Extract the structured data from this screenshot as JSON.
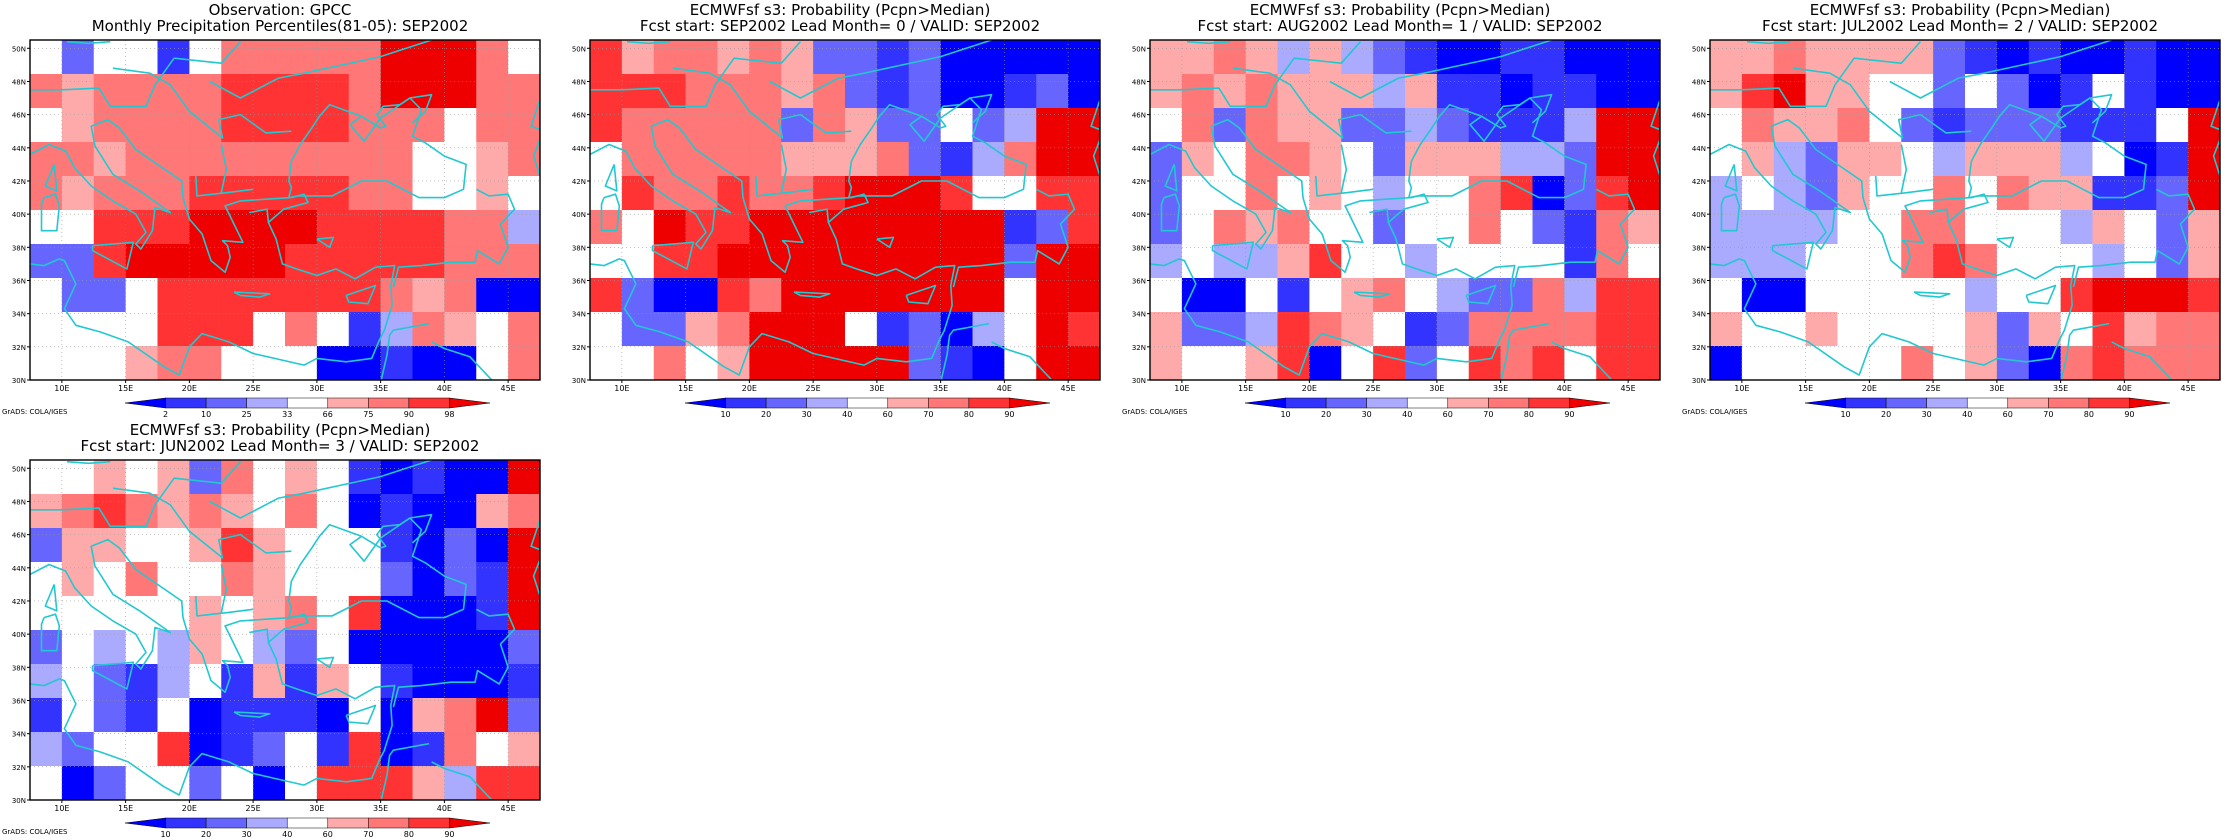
{
  "grid": {
    "lon_from": 7.5,
    "lon_to": 47.5,
    "lat_from": 30,
    "lat_to": 50.5,
    "cols": 16,
    "rows": 10
  },
  "x_ticks": [
    "10E",
    "15E",
    "20E",
    "25E",
    "30E",
    "35E",
    "40E",
    "45E"
  ],
  "y_ticks": [
    "50N",
    "48N",
    "46N",
    "44N",
    "42N",
    "40N",
    "38N",
    "36N",
    "34N",
    "32N",
    "30N"
  ],
  "coast_color": "#22c8d0",
  "colors": {
    "w": "#ffffff",
    "b3": "#0000ff",
    "b2": "#3333ff",
    "b1": "#6666ff",
    "b0": "#aaaaff",
    "r0": "#ffaaaa",
    "r1": "#ff7777",
    "r2": "#ff3333",
    "r3": "#ee0000"
  },
  "scale_obs": {
    "labels": [
      "2",
      "10",
      "25",
      "33",
      "66",
      "75",
      "90",
      "98"
    ],
    "colors": [
      "b3",
      "b2",
      "b1",
      "b0",
      "w",
      "r0",
      "r1",
      "r2",
      "r3"
    ]
  },
  "scale_prob": {
    "labels": [
      "10",
      "20",
      "30",
      "40",
      "60",
      "70",
      "80",
      "90"
    ],
    "colors": [
      "b3",
      "b2",
      "b1",
      "b0",
      "w",
      "r0",
      "r1",
      "r2",
      "r3"
    ]
  },
  "panels": [
    {
      "title1": "Observation: GPCC",
      "title2": "Monthly Precipitation Percentiles(81-05): SEP2002",
      "credit": "GrADS: COLA/IGES",
      "scale": "obs",
      "cells": [
        "w b1 w w b2 w r1 r1 r1 r1 r1 r3 r3 r3 r1 w",
        "r1 r0 r1 r1 r1 r1 r2 r2 r2 r2 r1 r3 r3 r3 r1 r1",
        "w r0 r1 r1 r1 r1 r2 r2 r2 r2 r1 r1 r1 w r1 r1",
        "r1 r1 r0 r1 r1 r1 r1 r1 r1 r1 r1 r1 w w r0 r1",
        "r1 r0 r1 r1 r1 r2 r2 r2 r2 r2 r1 r1 w w r0 w",
        "w w r2 r2 r2 r3 r3 r3 r3 r2 r2 r2 r2 r1 r1 b0",
        "b1 b1 r2 r3 r3 r3 r3 r3 r2 r2 r2 r2 r2 r1 r1 r1",
        "w b1 b1 w r2 r2 r2 r2 r2 r2 r2 r1 r0 r1 b3 b3",
        "w w w w r2 r2 r2 w r1 w b2 b0 r1 r0 w r1",
        "w w w r0 r1 r1 w w w b3 b3 b2 b3 b3 w r1"
      ]
    },
    {
      "title1": "ECMWFsf s3: Probability (Pcpn>Median)",
      "title2": "Fcst start: SEP2002  Lead Month= 0 / VALID: SEP2002",
      "credit": "",
      "scale": "prob",
      "cells": [
        "r2 r0 r1 r1 r0 r1 r0 b1 b1 b2 b1 b3 b3 b3 b3 b3",
        "r2 r2 r2 r1 r1 r1 r0 r1 b1 b2 b1 b3 b3 b2 b1 b3",
        "r2 r1 r1 r1 r1 r1 b1 r1 r0 b1 b1 w b1 b0 r3 r3",
        "w r1 r1 r1 r1 r1 r0 r0 r0 r1 b1 b2 b0 r1 r3 r3",
        "w r2 r1 r1 r2 r1 r1 r2 r3 r3 r3 r2 w w r2 r2",
        "r1 w r3 r2 r2 r3 r3 r3 r3 r3 r3 r3 r3 b2 b1 r2",
        "w w r2 r2 r3 r3 r3 r3 r3 r3 r3 r3 r3 b1 r3 r3",
        "r2 b1 b3 b3 r2 r1 r3 r3 r3 r3 r3 r3 r3 w r3 r3",
        "w b1 b1 r0 r1 r3 r3 r3 w b2 b1 b3 b0 w r3 r2",
        "w w r1 w r0 r3 r3 r3 r3 r3 b1 b2 b3 w r3 r3"
      ]
    },
    {
      "title1": "ECMWFsf s3: Probability (Pcpn>Median)",
      "title2": "Fcst start: AUG2002  Lead Month= 1 / VALID: SEP2002",
      "credit": "GrADS: COLA/IGES",
      "scale": "prob",
      "cells": [
        "r0 r0 r1 r0 b0 r0 b0 b1 b2 b3 b3 b2 b2 b3 b3 b3",
        "r0 r1 r0 r1 r0 r0 r0 b0 r0 b2 b2 b3 b2 b2 b3 b3",
        "w r1 b1 r1 r0 r0 b1 b1 b0 b1 b2 b2 b2 b0 r3 r3",
        "b1 r0 w r1 r1 r0 w b1 r0 r0 r0 b0 b0 b1 r3 r3",
        "b1 w w r1 w r0 w b0 w w r1 r2 b3 b1 r2 r3",
        "b1 w r1 r0 r1 w w b1 w w r1 w b1 b2 r1 r0",
        "b0 w b0 b0 r0 r2 w w b0 w w w w b2 r1 w",
        "w b3 b3 w b2 w r0 r1 w b0 b1 b1 r1 b0 r2 r2",
        "r0 b1 b1 b0 r2 r1 r0 w b2 b1 r1 r1 r1 r1 r2 r2",
        "r0 w w r0 r2 b3 w r2 b1 w r2 r1 r2 w r2 r2"
      ]
    },
    {
      "title1": "ECMWFsf s3: Probability (Pcpn>Median)",
      "title2": "Fcst start: JUL2002  Lead Month= 2 / VALID: SEP2002",
      "credit": "GrADS: COLA/IGES",
      "scale": "prob",
      "cells": [
        "r0 r0 r1 r0 r0 r0 r0 b1 b2 b3 b2 b3 b3 b2 b3 b3",
        "r0 r2 r3 r0 r0 w w b1 w b1 b3 b2 w b2 b3 b3",
        "w r1 r0 r0 r1 w b1 b2 b1 b1 b1 b2 b2 b2 w r3",
        "w r0 b0 b1 r0 r0 w b0 r0 r0 r0 b0 w b3 b2 r3",
        "b0 w b0 b1 r0 w w r1 w r1 r0 r0 b2 b2 b1 r3",
        "b0 b0 b0 b0 w w r1 r1 w w w b0 r0 w b1 r0",
        "b0 b0 b0 w w w r1 r2 r1 w w w b0 w b1 r0",
        "w b3 b3 w w w w w b0 w w r2 r3 r3 r3 r2",
        "r0 w w r0 w w w w r0 b1 r0 w r2 r0 r1 r1",
        "b3 w w w w w r1 w r0 b1 b3 r1 r2 r1 r1 r1"
      ]
    },
    {
      "title1": "ECMWFsf s3: Probability (Pcpn>Median)",
      "title2": "Fcst start: JUN2002  Lead Month= 3 / VALID: SEP2002",
      "credit": "GrADS: COLA/IGES",
      "scale": "prob",
      "cells": [
        "w w r0 w r0 b1 r1 w r0 w b2 b3 b2 b3 b3 r3",
        "r0 r1 r2 r1 r0 r1 r0 w r1 w b3 b2 b3 b3 r0 r1",
        "b1 r0 r0 w w r0 r2 r0 w w w b2 b3 b1 b3 r3",
        "w r0 w r1 w w r1 r0 w w w b1 b3 b1 b2 r3",
        "w w w w w r0 w r0 r1 w r2 b3 b3 b3 b2 r3",
        "b1 w b0 w b0 r0 w b0 b1 w b3 b3 b3 b3 b3 b1",
        "b0 w b1 b2 b0 w b2 r0 b2 r0 w b2 b3 b3 b3 b2",
        "b2 w b1 b2 w b3 b2 b2 b2 b3 w b3 r0 r1 r3 b1",
        "b0 b1 w w r2 b3 b2 b1 w b2 r2 b3 b2 r1 w r0",
        "w b3 b1 w w b1 w b3 w r2 r2 r2 r0 b0 r2 r2"
      ]
    }
  ]
}
